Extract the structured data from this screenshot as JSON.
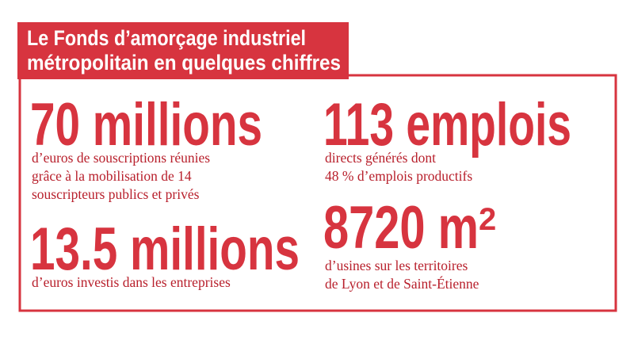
{
  "header": {
    "title_lines": [
      "Le Fonds d’amorçage industriel",
      "métropolitain en quelques chiffres"
    ]
  },
  "stats": [
    {
      "figure": "70 millions",
      "description_lines": [
        "d’euros de souscriptions réunies",
        "grâce à la mobilisation de 14",
        "souscripteurs publics et privés"
      ]
    },
    {
      "figure": "113 emplois",
      "description_lines": [
        "directs générés dont",
        "48 % d’emplois productifs"
      ]
    },
    {
      "figure": "13.5 millions",
      "description_lines": [
        "d’euros investis dans les entreprises"
      ]
    },
    {
      "figure": "8720 m",
      "superscript": "2",
      "description_lines": [
        "d’usines sur les territoires",
        "de Lyon et de Saint-Étienne"
      ]
    }
  ]
}
